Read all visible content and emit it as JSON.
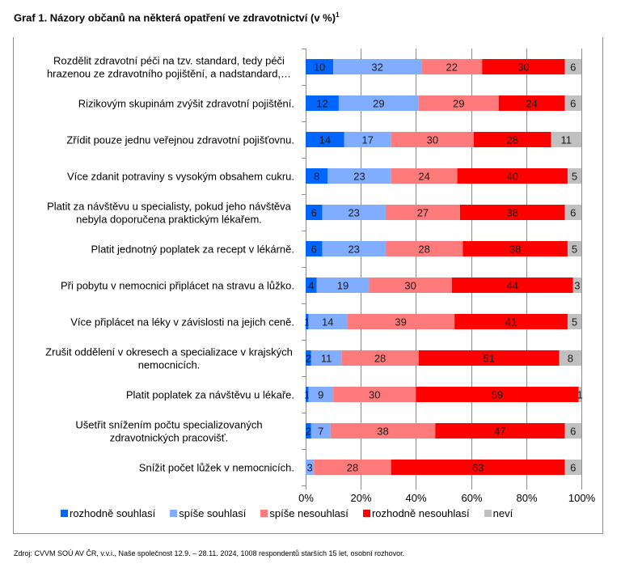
{
  "title": "Graf 1. Názory občanů na některá opatření ve zdravotnictví (v %)",
  "title_footnote": "1",
  "source": "Zdroj: CVVM SOÚ AV ČR, v.v.i., Naše společnost 12.9. – 28.11. 2024, 1008 respondentů starších 15 let, osobní rozhovor.",
  "legend": [
    {
      "label": "rozhodně souhlasí",
      "color": "#0066ff"
    },
    {
      "label": "spíše souhlasí",
      "color": "#80adff"
    },
    {
      "label": "spíše nesouhlasí",
      "color": "#ff7b7b"
    },
    {
      "label": "rozhodně nesouhlasí",
      "color": "#ff0000"
    },
    {
      "label": "neví",
      "color": "#c0c0c0"
    }
  ],
  "chart_data": {
    "type": "bar",
    "orientation": "horizontal",
    "stacked": true,
    "title": "Graf 1. Názory občanů na některá opatření ve zdravotnictví (v %)",
    "xlabel": "",
    "ylabel": "",
    "xlim": [
      0,
      100
    ],
    "x_ticks": [
      "0%",
      "20%",
      "40%",
      "60%",
      "80%",
      "100%"
    ],
    "grid": "vertical",
    "legend_position": "bottom",
    "categories": [
      [
        "Rozdělit zdravotní péči na tzv. standard, tedy péči",
        "hrazenou ze zdravotního pojištění, a nadstandard,…"
      ],
      [
        "Rizikovým skupinám zvýšit zdravotní pojištění."
      ],
      [
        "Zřídit pouze jednu veřejnou zdravotní pojišťovnu."
      ],
      [
        "Více zdanit potraviny s vysokým obsahem cukru."
      ],
      [
        "Platit za návštěvu u specialisty, pokud jeho návštěva",
        "nebyla doporučena praktickým lékařem."
      ],
      [
        "Platit jednotný poplatek za recept v lékárně."
      ],
      [
        "Při pobytu v nemocnici připlácet na stravu a lůžko."
      ],
      [
        "Více připlácet na léky v závislosti na jejich ceně."
      ],
      [
        "Zrušit oddělení v okresech a specializace v krajských",
        "nemocnicích."
      ],
      [
        "Platit poplatek za návštěvu u lékaře."
      ],
      [
        "Ušetřit snížením počtu specializovaných",
        "zdravotnických pracovišť."
      ],
      [
        "Snížit počet lůžek v nemocnicích."
      ]
    ],
    "series": [
      {
        "name": "rozhodně souhlasí",
        "color": "#0066ff",
        "values": [
          10,
          12,
          14,
          8,
          6,
          6,
          4,
          1,
          2,
          1,
          2,
          0
        ]
      },
      {
        "name": "spíše souhlasí",
        "color": "#80adff",
        "values": [
          32,
          29,
          17,
          23,
          23,
          23,
          19,
          14,
          11,
          9,
          7,
          3
        ]
      },
      {
        "name": "spíše nesouhlasí",
        "color": "#ff7b7b",
        "values": [
          22,
          29,
          30,
          24,
          27,
          28,
          30,
          39,
          28,
          30,
          38,
          28
        ]
      },
      {
        "name": "rozhodně nesouhlasí",
        "color": "#ff0000",
        "values": [
          30,
          24,
          28,
          40,
          38,
          38,
          44,
          41,
          51,
          59,
          47,
          63
        ]
      },
      {
        "name": "neví",
        "color": "#c0c0c0",
        "values": [
          6,
          6,
          11,
          5,
          6,
          5,
          3,
          5,
          8,
          1,
          6,
          6
        ]
      }
    ]
  }
}
